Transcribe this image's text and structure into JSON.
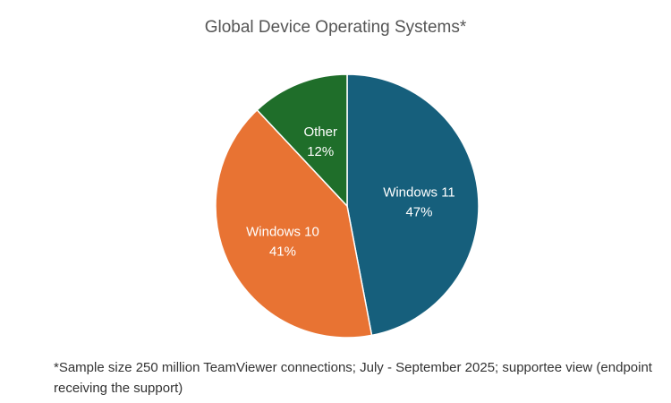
{
  "chart_data": {
    "type": "pie",
    "title": "Global Device Operating Systems*",
    "categories": [
      "Windows 11",
      "Windows 10",
      "Other"
    ],
    "values": [
      47,
      41,
      12
    ],
    "value_labels": [
      "47%",
      "41%",
      "12%"
    ],
    "colors": [
      "#165f7c",
      "#e87333",
      "#1f6e2a"
    ],
    "start": "12 o'clock",
    "direction": "clockwise",
    "footnote": "*Sample size 250 million TeamViewer connections; July - September 2025; supportee view (endpoint receiving the support)"
  }
}
